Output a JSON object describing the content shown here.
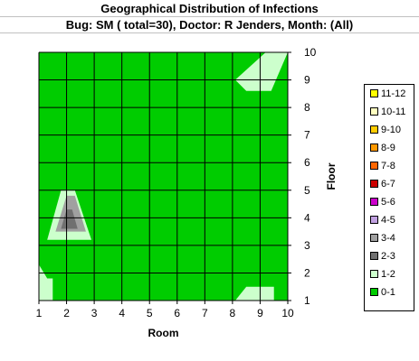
{
  "title": "Geographical Distribution of Infections",
  "subtitle": "Bug: SM ( total=30), Doctor: R Jenders, Month: (All)",
  "chart_data": {
    "type": "contour",
    "title": "Geographical Distribution of Infections",
    "subtitle": "Bug: SM ( total=30), Doctor: R Jenders, Month: (All)",
    "xlabel": "Room",
    "ylabel": "Floor",
    "xlim": [
      1,
      10
    ],
    "ylim": [
      1,
      10
    ],
    "x_ticks": [
      "1",
      "2",
      "3",
      "4",
      "5",
      "6",
      "7",
      "8",
      "9",
      "10"
    ],
    "y_ticks": [
      "1",
      "2",
      "3",
      "4",
      "5",
      "6",
      "7",
      "8",
      "9",
      "10"
    ],
    "grid": true,
    "legend_position": "right",
    "legend": [
      {
        "label": "11-12",
        "color": "#ffff00"
      },
      {
        "label": "10-11",
        "color": "#ffffc0"
      },
      {
        "label": "9-10",
        "color": "#ffcc00"
      },
      {
        "label": "8-9",
        "color": "#ff9900"
      },
      {
        "label": "7-8",
        "color": "#ff6600"
      },
      {
        "label": "6-7",
        "color": "#cc0000"
      },
      {
        "label": "5-6",
        "color": "#cc00cc"
      },
      {
        "label": "4-5",
        "color": "#c0a0e0"
      },
      {
        "label": "3-4",
        "color": "#a0a0a0"
      },
      {
        "label": "2-3",
        "color": "#707070"
      },
      {
        "label": "1-2",
        "color": "#ccffcc"
      },
      {
        "label": "0-1",
        "color": "#00cc00"
      }
    ],
    "regions": [
      {
        "band": "1-2",
        "points": [
          [
            1.3,
            3.2
          ],
          [
            1.8,
            5
          ],
          [
            2.3,
            5
          ],
          [
            2.9,
            3.2
          ]
        ]
      },
      {
        "band": "3-4",
        "points": [
          [
            1.6,
            3.5
          ],
          [
            2,
            4.8
          ],
          [
            2.3,
            4.8
          ],
          [
            2.7,
            3.5
          ]
        ]
      },
      {
        "band": "2-3",
        "points": [
          [
            1.8,
            3.6
          ],
          [
            2,
            4.3
          ],
          [
            2.2,
            4.3
          ],
          [
            2.4,
            3.6
          ]
        ]
      },
      {
        "band": "1-2",
        "points": [
          [
            1,
            2.3
          ],
          [
            1.3,
            1.8
          ],
          [
            1.5,
            1.8
          ],
          [
            1.5,
            1
          ],
          [
            1,
            1
          ]
        ]
      },
      {
        "band": "1-2",
        "points": [
          [
            8.1,
            9
          ],
          [
            9.2,
            10
          ],
          [
            10,
            10
          ],
          [
            9.4,
            8.6
          ],
          [
            8.5,
            8.6
          ]
        ]
      },
      {
        "band": "1-2",
        "points": [
          [
            8.1,
            1
          ],
          [
            8.5,
            1.5
          ],
          [
            9.5,
            1.5
          ],
          [
            9.5,
            1
          ]
        ]
      }
    ],
    "background_band": "0-1"
  }
}
